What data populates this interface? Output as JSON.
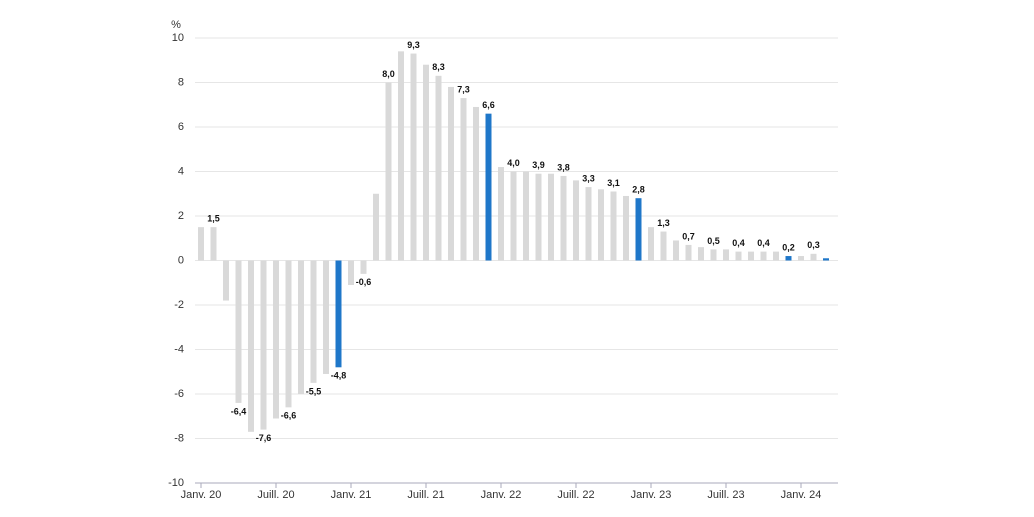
{
  "chart_data": {
    "type": "bar",
    "y_label": "%",
    "categories": [
      "Janv. 20",
      null,
      null,
      null,
      null,
      null,
      "Juill. 20",
      null,
      null,
      null,
      null,
      null,
      "Janv. 21",
      null,
      null,
      null,
      null,
      null,
      "Juill. 21",
      null,
      null,
      null,
      null,
      null,
      "Janv. 22",
      null,
      null,
      null,
      null,
      null,
      "Juill. 22",
      null,
      null,
      null,
      null,
      null,
      "Janv. 23",
      null,
      null,
      null,
      null,
      null,
      "Juill. 23",
      null,
      null,
      null,
      null,
      null,
      "Janv. 24",
      null,
      null
    ],
    "values": [
      1.5,
      1.5,
      -1.8,
      -6.4,
      -7.7,
      -7.6,
      -7.1,
      -6.6,
      -6.0,
      -5.5,
      -5.1,
      -4.8,
      -1.1,
      -0.6,
      3.0,
      8.0,
      9.4,
      9.3,
      8.8,
      8.3,
      7.8,
      7.3,
      6.9,
      6.6,
      4.2,
      4.0,
      4.0,
      3.9,
      3.9,
      3.8,
      3.6,
      3.3,
      3.2,
      3.1,
      2.9,
      2.8,
      1.5,
      1.3,
      0.9,
      0.7,
      0.6,
      0.5,
      0.5,
      0.4,
      0.4,
      0.4,
      0.4,
      0.2,
      0.2,
      0.3,
      0.1
    ],
    "value_labels": [
      null,
      "1,5",
      null,
      "-6,4",
      null,
      "-7,6",
      null,
      "-6,6",
      null,
      "-5,5",
      null,
      "-4,8",
      null,
      "-0,6",
      null,
      "8,0",
      null,
      "9,3",
      null,
      "8,3",
      null,
      "7,3",
      null,
      "6,6",
      null,
      "4,0",
      null,
      "3,9",
      null,
      "3,8",
      null,
      "3,3",
      null,
      "3,1",
      null,
      "2,8",
      null,
      "1,3",
      null,
      "0,7",
      null,
      "0,5",
      null,
      "0,4",
      null,
      "0,4",
      null,
      "0,2",
      null,
      "0,3",
      null
    ],
    "colors": [
      "#d9d9d9",
      "#d9d9d9",
      "#d9d9d9",
      "#d9d9d9",
      "#d9d9d9",
      "#d9d9d9",
      "#d9d9d9",
      "#d9d9d9",
      "#d9d9d9",
      "#d9d9d9",
      "#d9d9d9",
      "#1f77c9",
      "#d9d9d9",
      "#d9d9d9",
      "#d9d9d9",
      "#d9d9d9",
      "#d9d9d9",
      "#d9d9d9",
      "#d9d9d9",
      "#d9d9d9",
      "#d9d9d9",
      "#d9d9d9",
      "#d9d9d9",
      "#1f77c9",
      "#d9d9d9",
      "#d9d9d9",
      "#d9d9d9",
      "#d9d9d9",
      "#d9d9d9",
      "#d9d9d9",
      "#d9d9d9",
      "#d9d9d9",
      "#d9d9d9",
      "#d9d9d9",
      "#d9d9d9",
      "#1f77c9",
      "#d9d9d9",
      "#d9d9d9",
      "#d9d9d9",
      "#d9d9d9",
      "#d9d9d9",
      "#d9d9d9",
      "#d9d9d9",
      "#d9d9d9",
      "#d9d9d9",
      "#d9d9d9",
      "#d9d9d9",
      "#1f77c9",
      "#d9d9d9",
      "#d9d9d9",
      "#1f77c9"
    ],
    "ylim": [
      -10,
      10
    ],
    "yticks": [
      -10,
      -8,
      -6,
      -4,
      -2,
      0,
      2,
      4,
      6,
      8,
      10
    ],
    "grid": true
  }
}
